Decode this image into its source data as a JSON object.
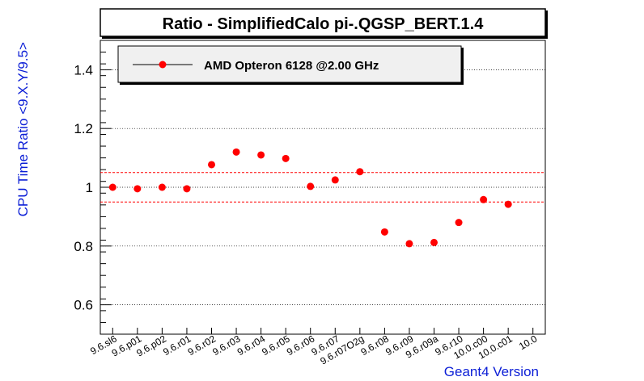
{
  "chart_data": {
    "type": "scatter",
    "title": "Ratio - SimplifiedCalo pi-.QGSP_BERT.1.4",
    "xlabel": "Geant4 Version",
    "ylabel": "CPU Time Ratio <9.X.Y/9.5>",
    "ylim": [
      0.5,
      1.5
    ],
    "yticks": [
      0.6,
      0.8,
      1,
      1.2,
      1.4
    ],
    "categories": [
      "9.6.sl6",
      "9.6.p01",
      "9.6.p02",
      "9.6.r01",
      "9.6.r02",
      "9.6.r03",
      "9.6.r04",
      "9.6.r05",
      "9.6.r06",
      "9.6.r07",
      "9.6.r07O2g",
      "9.6.r08",
      "9.6.r09",
      "9.6.r09a",
      "9.6.r10",
      "10.0.c00",
      "10.0.c01",
      "10.0"
    ],
    "series": [
      {
        "name": "AMD Opteron 6128 @2.00 GHz",
        "color": "#ff0000",
        "values": [
          1.0,
          0.995,
          1.0,
          0.995,
          1.077,
          1.12,
          1.11,
          1.098,
          1.003,
          1.025,
          1.053,
          0.848,
          0.808,
          0.812,
          0.88,
          0.958,
          0.942
        ]
      }
    ],
    "reference_lines": [
      1.05,
      0.95
    ],
    "reference_line_color": "#ff0000",
    "grid": "horizontal",
    "legend_position": "top-left",
    "axis_title_color": "#0b1ed6"
  }
}
